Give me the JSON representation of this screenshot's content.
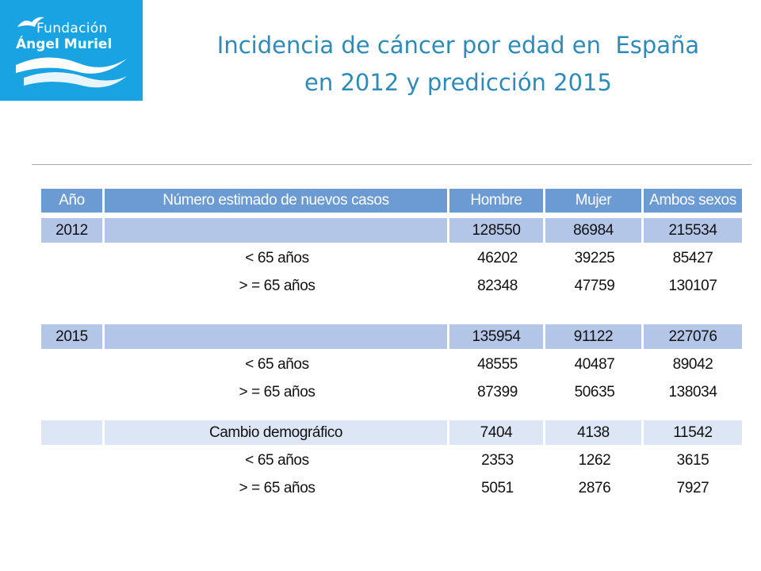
{
  "logo": {
    "line1": "Fundación",
    "line2": "Ángel Muriel",
    "color": "#1aa3e2"
  },
  "title": {
    "line1": "Incidencia de cáncer por edad en  España",
    "line2": "en 2012 y predicción 2015",
    "color": "#2e8ab8"
  },
  "table": {
    "headers": [
      "Año",
      "Número estimado de nuevos casos",
      "Hombre",
      "Mujer",
      "Ambos sexos"
    ],
    "header_color": "#6c9ad2",
    "year_row_color": "#b4c6e8",
    "change_row_color": "#dde6f5",
    "y2012": {
      "total": [
        "2012",
        "",
        "128550",
        "86984",
        "215534"
      ],
      "under65": [
        "",
        "< 65 años",
        "46202",
        "39225",
        "85427"
      ],
      "over65": [
        "",
        "> = 65 años",
        "82348",
        "47759",
        "130107"
      ]
    },
    "y2015": {
      "total": [
        "2015",
        "",
        "135954",
        "91122",
        "227076"
      ],
      "under65": [
        "",
        "< 65 años",
        "48555",
        "40487",
        "89042"
      ],
      "over65": [
        "",
        "> = 65 años",
        "87399",
        "50635",
        "138034"
      ]
    },
    "change": {
      "total": [
        "",
        "Cambio demográfico",
        "7404",
        "4138",
        "11542"
      ],
      "under65": [
        "",
        "< 65 años",
        "2353",
        "1262",
        "3615"
      ],
      "over65": [
        "",
        "> = 65 años",
        "5051",
        "2876",
        "7927"
      ]
    }
  }
}
